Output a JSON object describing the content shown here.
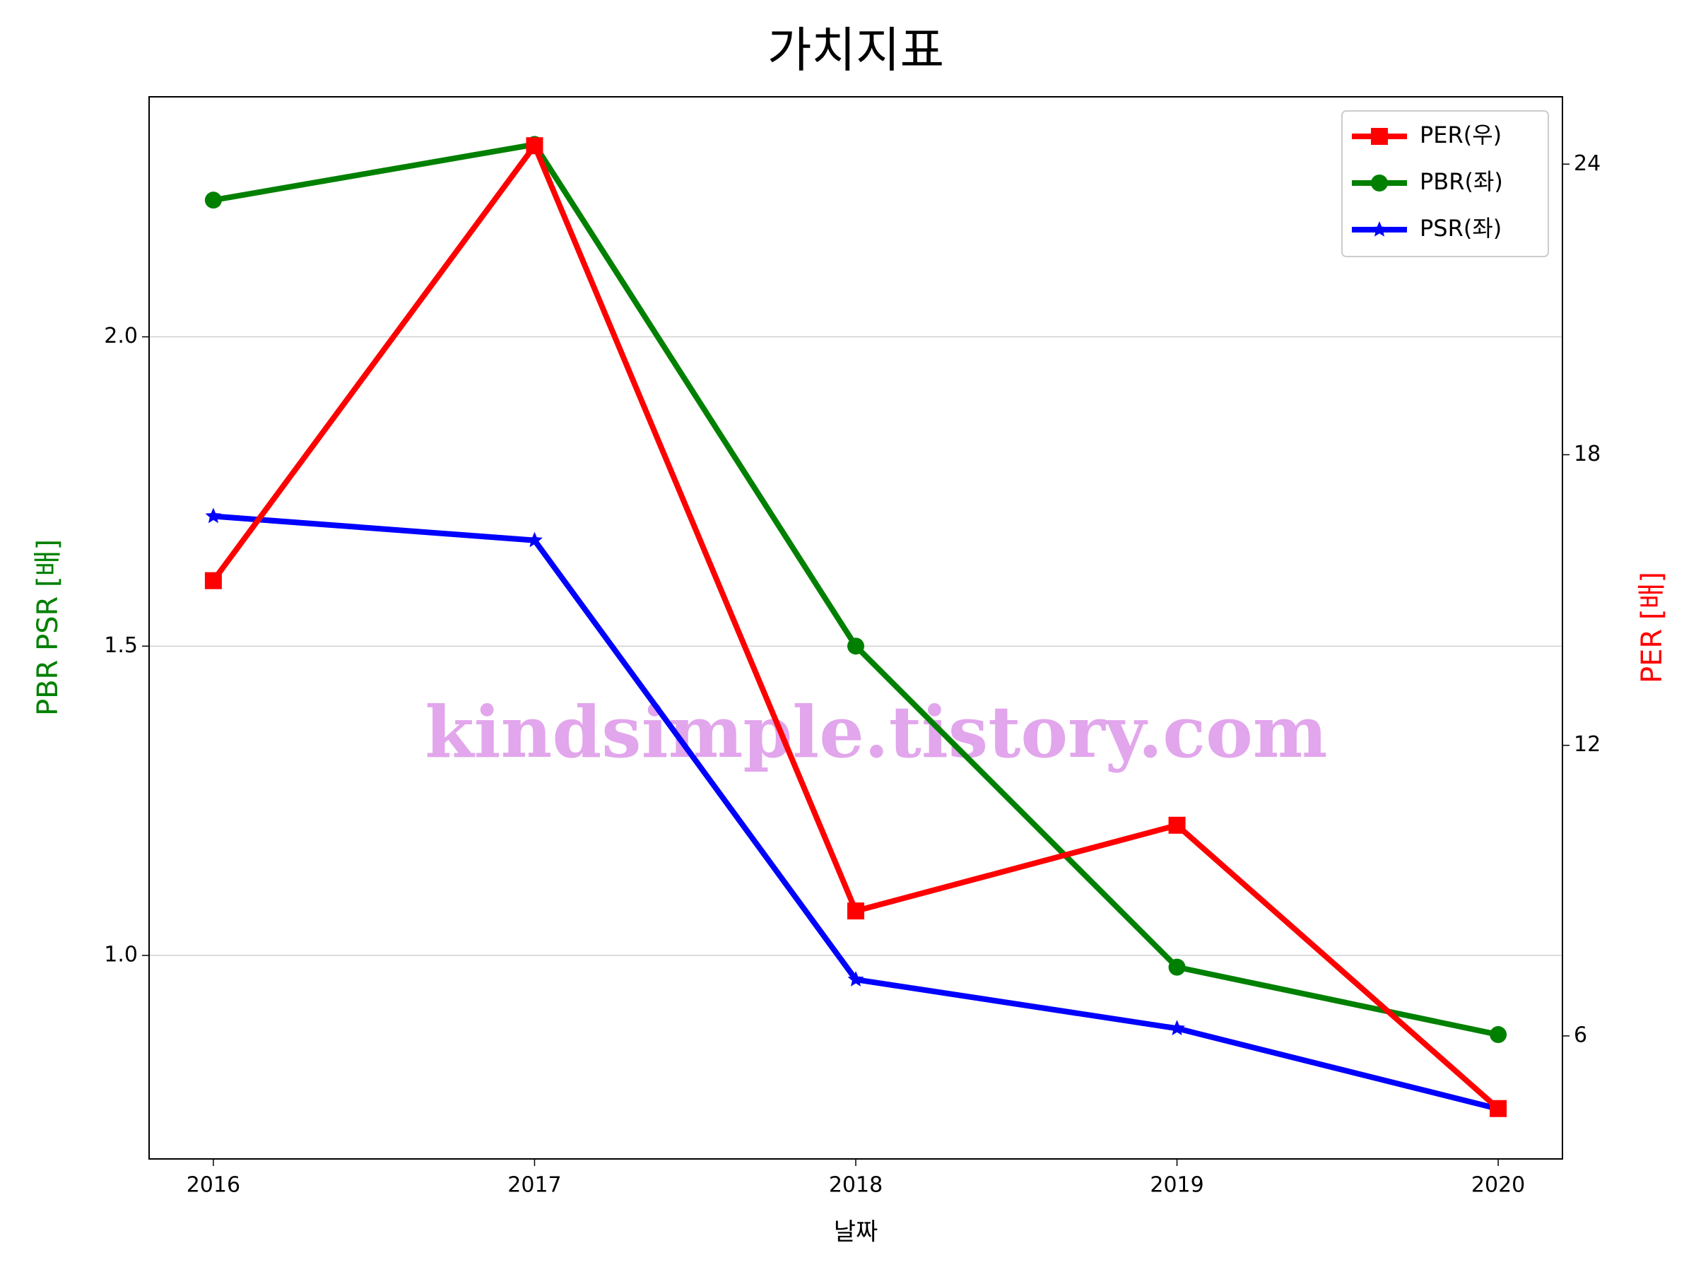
{
  "chart_data": {
    "type": "line",
    "title": "가치지표",
    "x_label": "날짜",
    "y_label": "PBR PSR [배]",
    "y2_label": "PER [배]",
    "watermark": "kindsimple.tistory.com",
    "x": [
      2016,
      2017,
      2018,
      2019,
      2020
    ],
    "xlim": [
      2015.8,
      2020.2
    ],
    "xticks": [
      2016,
      2017,
      2018,
      2019,
      2020
    ],
    "ylim": [
      0.671,
      2.388
    ],
    "yticks": [
      {
        "value": 1,
        "label": "1.0"
      },
      1.5,
      {
        "value": 2,
        "label": "2.0"
      }
    ],
    "y2lim": [
      3.46,
      25.39
    ],
    "y2ticks": [
      6,
      12,
      18,
      24
    ],
    "grid": true,
    "legend": "upper right",
    "series": [
      {
        "name": "PER(우)",
        "color": "#ff0000",
        "marker": "square",
        "axis": "y2",
        "values": [
          15.4,
          24.38,
          8.58,
          10.35,
          4.5
        ]
      },
      {
        "name": "PBR(좌)",
        "color": "#008000",
        "marker": "circle",
        "values": [
          2.221,
          2.311,
          1.5,
          0.981,
          0.872
        ]
      },
      {
        "name": "PSR(좌)",
        "color": "#0000ff",
        "marker": "star",
        "values": [
          1.71,
          1.671,
          0.961,
          0.882,
          0.752
        ]
      }
    ]
  }
}
